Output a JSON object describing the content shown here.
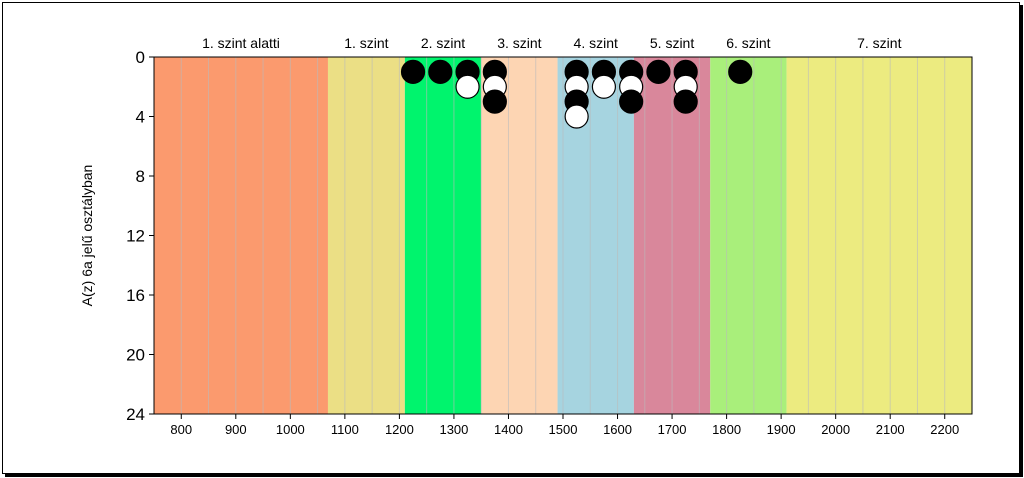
{
  "chart_data": {
    "type": "scatter",
    "title": "",
    "xlabel": "",
    "ylabel": "A(z) 6a jelű osztályban",
    "xlim": [
      750,
      2250
    ],
    "ylim": [
      24,
      0
    ],
    "x_ticks": [
      800,
      900,
      1000,
      1100,
      1200,
      1300,
      1400,
      1500,
      1600,
      1700,
      1800,
      1900,
      2000,
      2100,
      2200
    ],
    "x_tick_labels": [
      "800",
      "900",
      "1000",
      "1100",
      "1200",
      "1300",
      "1400",
      "1500",
      "1600",
      "1700",
      "1800",
      "1900",
      "2000",
      "2100",
      "2200"
    ],
    "y_ticks": [
      0,
      4,
      8,
      12,
      16,
      20,
      24
    ],
    "y_tick_labels": [
      "0",
      "4",
      "8",
      "12",
      "16",
      "20",
      "24"
    ],
    "minor_gridlines_every": 50,
    "bands": [
      {
        "label": "1. szint alatti",
        "from": 750,
        "to": 1069,
        "color": "#fb9a6e"
      },
      {
        "label": "1. szint",
        "from": 1069,
        "to": 1210,
        "color": "#ebdf85"
      },
      {
        "label": "2. szint",
        "from": 1210,
        "to": 1350,
        "color": "#00f46d"
      },
      {
        "label": "3. szint",
        "from": 1350,
        "to": 1490,
        "color": "#fdd5b3"
      },
      {
        "label": "4. szint",
        "from": 1490,
        "to": 1630,
        "color": "#a6d4e0"
      },
      {
        "label": "5. szint",
        "from": 1630,
        "to": 1770,
        "color": "#d9879b"
      },
      {
        "label": "6. szint",
        "from": 1770,
        "to": 1910,
        "color": "#a9ef7b"
      },
      {
        "label": "7. szint",
        "from": 1910,
        "to": 2250,
        "color": "#eceb80"
      }
    ],
    "points": [
      {
        "x": 1225,
        "y": 1,
        "fill": "black"
      },
      {
        "x": 1275,
        "y": 1,
        "fill": "black"
      },
      {
        "x": 1325,
        "y": 1,
        "fill": "black"
      },
      {
        "x": 1325,
        "y": 2,
        "fill": "white"
      },
      {
        "x": 1375,
        "y": 1,
        "fill": "black"
      },
      {
        "x": 1375,
        "y": 2,
        "fill": "white"
      },
      {
        "x": 1375,
        "y": 3,
        "fill": "black"
      },
      {
        "x": 1525,
        "y": 1,
        "fill": "black"
      },
      {
        "x": 1525,
        "y": 2,
        "fill": "white"
      },
      {
        "x": 1525,
        "y": 3,
        "fill": "black"
      },
      {
        "x": 1525,
        "y": 4,
        "fill": "white"
      },
      {
        "x": 1575,
        "y": 1,
        "fill": "black"
      },
      {
        "x": 1575,
        "y": 2,
        "fill": "white"
      },
      {
        "x": 1625,
        "y": 1,
        "fill": "black"
      },
      {
        "x": 1625,
        "y": 2,
        "fill": "white"
      },
      {
        "x": 1625,
        "y": 3,
        "fill": "black"
      },
      {
        "x": 1675,
        "y": 1,
        "fill": "black"
      },
      {
        "x": 1725,
        "y": 1,
        "fill": "black"
      },
      {
        "x": 1725,
        "y": 2,
        "fill": "white"
      },
      {
        "x": 1725,
        "y": 3,
        "fill": "black"
      },
      {
        "x": 1825,
        "y": 1,
        "fill": "black"
      }
    ],
    "colors": {
      "grid": "#bbbbbb",
      "axis": "#000000",
      "marker_stroke": "#000000"
    }
  }
}
